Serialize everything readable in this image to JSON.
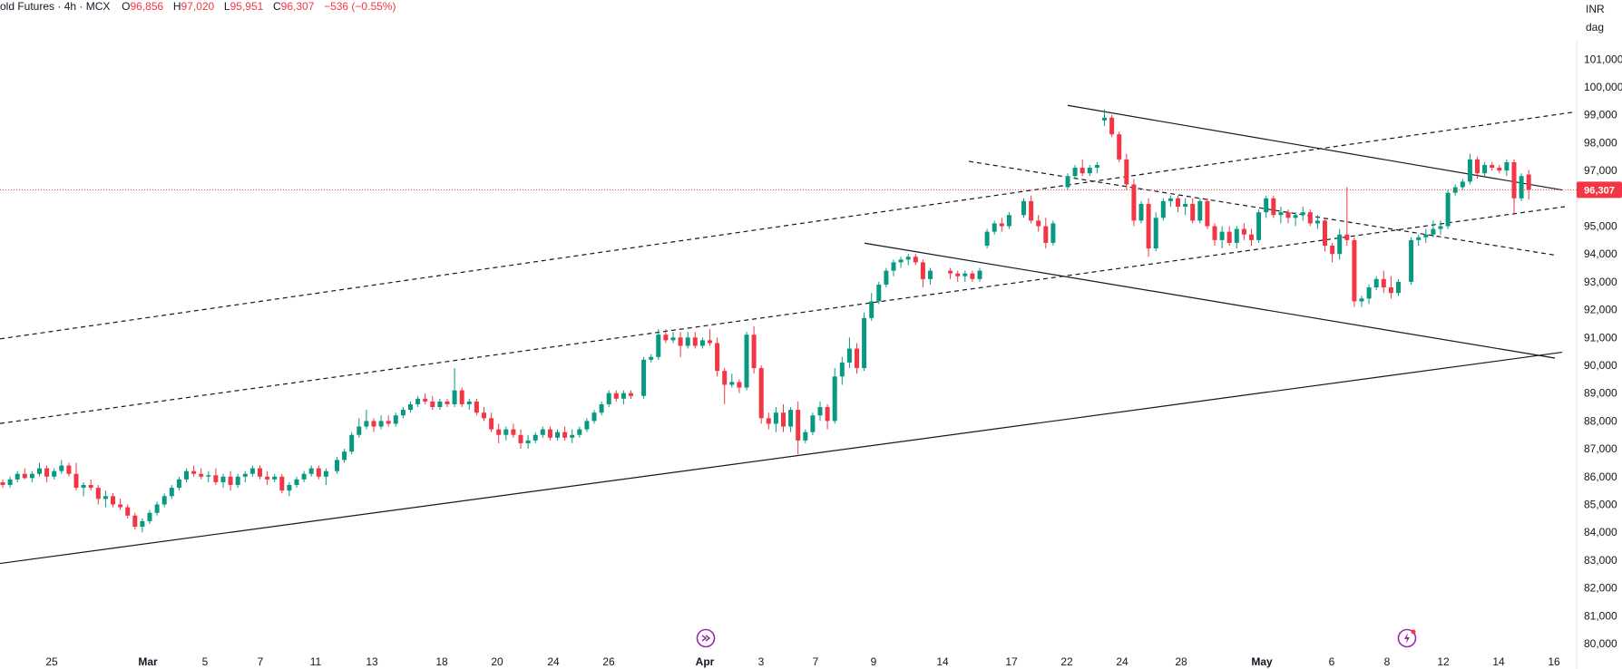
{
  "header": {
    "symbol": "old Futures",
    "interval": "4h",
    "exchange": "MCX",
    "o_label": "O",
    "o_value": "96,856",
    "h_label": "H",
    "h_value": "97,020",
    "l_label": "L",
    "l_value": "95,951",
    "c_label": "C",
    "c_value": "96,307",
    "change": "−536 (−0.55%)"
  },
  "price_axis": {
    "currency": "INR",
    "unit": "dag",
    "ticks": [
      "101,000",
      "100,000",
      "99,000",
      "98,000",
      "97,000",
      "96,000",
      "95,000",
      "94,000",
      "93,000",
      "92,000",
      "91,000",
      "90,000",
      "89,000",
      "88,000",
      "87,000",
      "86,000",
      "85,000",
      "84,000",
      "83,000",
      "82,000",
      "81,000",
      "80,000"
    ],
    "current_price": "96,307"
  },
  "colors": {
    "up": "#089981",
    "down": "#f23645",
    "trendline": "#131722",
    "price_line": "#f23645",
    "event_icon": "#9c27b0"
  },
  "chart_data": {
    "type": "candlestick",
    "y_unit": "INR",
    "yrange": [
      79600,
      102000
    ],
    "x_ticks": [
      "25",
      "Mar",
      "5",
      "7",
      "11",
      "13",
      "18",
      "20",
      "24",
      "26",
      "Apr",
      "3",
      "7",
      "9",
      "14",
      "17",
      "22",
      "24",
      "28",
      "May",
      "6",
      "8",
      "12",
      "14",
      "16"
    ],
    "last": {
      "open": 96856,
      "high": 97020,
      "low": 95951,
      "close": 96307,
      "change": -536,
      "change_pct": -0.55
    },
    "candles": [
      [
        85800,
        85900,
        85600,
        85700
      ],
      [
        85700,
        86000,
        85600,
        85900
      ],
      [
        85900,
        86200,
        85800,
        86100
      ],
      [
        86100,
        86300,
        85900,
        85950
      ],
      [
        85950,
        86200,
        85800,
        86100
      ],
      [
        86100,
        86500,
        86000,
        86300
      ],
      [
        86300,
        86400,
        85800,
        86000
      ],
      [
        86000,
        86300,
        85900,
        86200
      ],
      [
        86200,
        86600,
        86100,
        86400
      ],
      [
        86400,
        86500,
        86000,
        86100
      ],
      [
        86100,
        86500,
        85500,
        85600
      ],
      [
        85600,
        85800,
        85300,
        85700
      ],
      [
        85700,
        85900,
        85500,
        85600
      ],
      [
        85600,
        85700,
        85000,
        85200
      ],
      [
        85200,
        85500,
        84900,
        85300
      ],
      [
        85300,
        85400,
        84900,
        85000
      ],
      [
        85000,
        85200,
        84800,
        84900
      ],
      [
        84900,
        85000,
        84500,
        84600
      ],
      [
        84600,
        84700,
        84100,
        84200
      ],
      [
        84200,
        84500,
        84000,
        84400
      ],
      [
        84400,
        84800,
        84300,
        84700
      ],
      [
        84700,
        85100,
        84600,
        85000
      ],
      [
        85000,
        85400,
        84900,
        85300
      ],
      [
        85300,
        85700,
        85200,
        85600
      ],
      [
        85600,
        86000,
        85500,
        85900
      ],
      [
        85900,
        86300,
        85800,
        86200
      ],
      [
        86200,
        86400,
        86000,
        86100
      ],
      [
        86100,
        86300,
        85900,
        86000
      ],
      [
        86000,
        86200,
        85800,
        86050
      ],
      [
        86050,
        86300,
        85700,
        85800
      ],
      [
        85800,
        86100,
        85600,
        86000
      ],
      [
        86000,
        86200,
        85500,
        85700
      ],
      [
        85700,
        86100,
        85600,
        86000
      ],
      [
        86000,
        86200,
        85800,
        86100
      ],
      [
        86100,
        86400,
        86000,
        86300
      ],
      [
        86300,
        86400,
        85900,
        86000
      ],
      [
        86000,
        86200,
        85700,
        85900
      ],
      [
        85900,
        86100,
        85800,
        86000
      ],
      [
        86000,
        86100,
        85400,
        85500
      ],
      [
        85500,
        85800,
        85300,
        85700
      ],
      [
        85700,
        86000,
        85600,
        85900
      ],
      [
        85900,
        86200,
        85800,
        86100
      ],
      [
        86100,
        86400,
        86000,
        86300
      ],
      [
        86300,
        86400,
        85900,
        86000
      ],
      [
        86000,
        86300,
        85700,
        86200
      ],
      [
        86200,
        86700,
        86100,
        86600
      ],
      [
        86600,
        87000,
        86500,
        86900
      ],
      [
        86900,
        87600,
        86800,
        87500
      ],
      [
        87500,
        88100,
        87400,
        87800
      ],
      [
        87800,
        88400,
        87700,
        88000
      ],
      [
        88000,
        88100,
        87600,
        87800
      ],
      [
        87800,
        88200,
        87700,
        88000
      ],
      [
        88000,
        88200,
        87800,
        87900
      ],
      [
        87900,
        88300,
        87800,
        88200
      ],
      [
        88200,
        88500,
        88100,
        88400
      ],
      [
        88400,
        88700,
        88300,
        88600
      ],
      [
        88600,
        88900,
        88500,
        88800
      ],
      [
        88800,
        89000,
        88600,
        88700
      ],
      [
        88700,
        88900,
        88400,
        88500
      ],
      [
        88500,
        88800,
        88400,
        88700
      ],
      [
        88700,
        88800,
        88500,
        88600
      ],
      [
        88600,
        89900,
        88500,
        89100
      ],
      [
        89100,
        89200,
        88500,
        88600
      ],
      [
        88600,
        88800,
        88400,
        88700
      ],
      [
        88700,
        88800,
        88200,
        88300
      ],
      [
        88300,
        88500,
        88000,
        88100
      ],
      [
        88100,
        88300,
        87600,
        87700
      ],
      [
        87700,
        87900,
        87200,
        87500
      ],
      [
        87500,
        87800,
        87300,
        87700
      ],
      [
        87700,
        87900,
        87400,
        87500
      ],
      [
        87500,
        87700,
        87000,
        87200
      ],
      [
        87200,
        87500,
        87000,
        87300
      ],
      [
        87300,
        87600,
        87200,
        87500
      ],
      [
        87500,
        87800,
        87400,
        87700
      ],
      [
        87700,
        87800,
        87300,
        87400
      ],
      [
        87400,
        87700,
        87300,
        87600
      ],
      [
        87600,
        87800,
        87300,
        87400
      ],
      [
        87400,
        87700,
        87200,
        87500
      ],
      [
        87500,
        87800,
        87400,
        87700
      ],
      [
        87700,
        88100,
        87600,
        88000
      ],
      [
        88000,
        88400,
        87900,
        88300
      ],
      [
        88300,
        88700,
        88200,
        88600
      ],
      [
        88600,
        89100,
        88500,
        89000
      ],
      [
        89000,
        89100,
        88700,
        88800
      ],
      [
        88800,
        89100,
        88600,
        89000
      ],
      [
        89000,
        89100,
        88800,
        88900
      ],
      [
        88900,
        90300,
        88800,
        90200
      ],
      [
        90200,
        90400,
        90100,
        90300
      ],
      [
        90300,
        91300,
        90200,
        91100
      ],
      [
        91100,
        91300,
        90800,
        90900
      ],
      [
        90900,
        91200,
        90800,
        91000
      ],
      [
        91000,
        91200,
        90300,
        90700
      ],
      [
        90700,
        91200,
        90600,
        91000
      ],
      [
        91000,
        91200,
        90600,
        90700
      ],
      [
        90700,
        91000,
        90600,
        90900
      ],
      [
        90900,
        91300,
        90700,
        90800
      ],
      [
        90800,
        91000,
        89600,
        89800
      ],
      [
        89800,
        89900,
        88600,
        89300
      ],
      [
        89300,
        89700,
        89200,
        89400
      ],
      [
        89400,
        89500,
        89000,
        89200
      ],
      [
        89200,
        91200,
        89100,
        91100
      ],
      [
        91100,
        91400,
        89700,
        89900
      ],
      [
        89900,
        90000,
        87900,
        88100
      ],
      [
        88100,
        88300,
        87700,
        87900
      ],
      [
        87900,
        88500,
        87600,
        88300
      ],
      [
        88300,
        88600,
        87600,
        87800
      ],
      [
        87800,
        88500,
        87600,
        88400
      ],
      [
        88400,
        88700,
        86800,
        87300
      ],
      [
        87300,
        87700,
        87200,
        87600
      ],
      [
        87600,
        88300,
        87500,
        88200
      ],
      [
        88200,
        88700,
        88000,
        88500
      ],
      [
        88500,
        88600,
        87700,
        88000
      ],
      [
        88000,
        89900,
        87900,
        89600
      ],
      [
        89600,
        90300,
        89300,
        90100
      ],
      [
        90100,
        91000,
        89900,
        90600
      ],
      [
        90600,
        90800,
        89700,
        89900
      ],
      [
        89900,
        91900,
        89800,
        91700
      ],
      [
        91700,
        92600,
        91600,
        92300
      ],
      [
        92300,
        93000,
        92200,
        92900
      ],
      [
        92900,
        93500,
        92800,
        93400
      ],
      [
        93400,
        93800,
        93200,
        93700
      ],
      [
        93700,
        93900,
        93500,
        93800
      ],
      [
        93800,
        94000,
        93600,
        93900
      ],
      [
        93900,
        94000,
        93600,
        93700
      ],
      [
        93700,
        93800,
        92800,
        93100
      ],
      [
        93100,
        93500,
        92900,
        93400
      ],
      [
        93400,
        93500,
        93100,
        93300
      ],
      [
        93300,
        93400,
        93000,
        93200
      ],
      [
        93200,
        93400,
        93000,
        93300
      ],
      [
        93300,
        93400,
        93000,
        93100
      ],
      [
        93100,
        93500,
        93000,
        93400
      ],
      [
        94300,
        94900,
        94200,
        94800
      ],
      [
        94800,
        95200,
        94700,
        95100
      ],
      [
        95100,
        95300,
        94800,
        95000
      ],
      [
        95000,
        95500,
        94900,
        95400
      ],
      [
        95400,
        96000,
        95300,
        95900
      ],
      [
        95900,
        96100,
        95100,
        95200
      ],
      [
        95200,
        95400,
        94800,
        95000
      ],
      [
        95000,
        95300,
        94200,
        94400
      ],
      [
        94400,
        95200,
        94300,
        95100
      ],
      [
        96400,
        96900,
        96300,
        96800
      ],
      [
        96800,
        97200,
        96700,
        97100
      ],
      [
        97100,
        97400,
        96800,
        96900
      ],
      [
        96900,
        97200,
        96800,
        97100
      ],
      [
        97100,
        97300,
        96900,
        97200
      ],
      [
        98800,
        99200,
        98600,
        98900
      ],
      [
        98900,
        99000,
        98200,
        98300
      ],
      [
        98300,
        98400,
        97300,
        97400
      ],
      [
        97400,
        97600,
        96300,
        96500
      ],
      [
        96500,
        96700,
        95000,
        95200
      ],
      [
        95200,
        95900,
        95100,
        95800
      ],
      [
        95800,
        96000,
        93900,
        94200
      ],
      [
        94200,
        95500,
        94100,
        95300
      ],
      [
        95300,
        96000,
        95200,
        95900
      ],
      [
        95900,
        96100,
        95700,
        96000
      ],
      [
        96000,
        96100,
        95500,
        95700
      ],
      [
        95700,
        96000,
        95400,
        95800
      ],
      [
        95800,
        96000,
        95100,
        95200
      ],
      [
        95200,
        96000,
        95100,
        95900
      ],
      [
        95900,
        96000,
        94900,
        95000
      ],
      [
        95000,
        95100,
        94300,
        94500
      ],
      [
        94500,
        95000,
        94200,
        94800
      ],
      [
        94800,
        95000,
        94300,
        94400
      ],
      [
        94400,
        95000,
        94200,
        94900
      ],
      [
        94900,
        95100,
        94500,
        94700
      ],
      [
        94700,
        94900,
        94300,
        94500
      ],
      [
        94500,
        95600,
        94400,
        95500
      ],
      [
        95500,
        96100,
        95300,
        96000
      ],
      [
        96000,
        96100,
        95300,
        95400
      ],
      [
        95400,
        95700,
        95100,
        95500
      ],
      [
        95500,
        95600,
        95100,
        95300
      ],
      [
        95300,
        95500,
        95000,
        95400
      ],
      [
        95400,
        95700,
        95200,
        95500
      ],
      [
        95500,
        95600,
        95000,
        95100
      ],
      [
        95100,
        95400,
        94900,
        95200
      ],
      [
        95200,
        95300,
        94100,
        94300
      ],
      [
        94300,
        94400,
        93700,
        94000
      ],
      [
        94000,
        94900,
        93800,
        94700
      ],
      [
        94700,
        96400,
        94300,
        94500
      ],
      [
        94500,
        94600,
        92100,
        92300
      ],
      [
        92300,
        92500,
        92100,
        92400
      ],
      [
        92400,
        92900,
        92200,
        92800
      ],
      [
        92800,
        93200,
        92700,
        93100
      ],
      [
        93100,
        93400,
        92600,
        92800
      ],
      [
        92800,
        93200,
        92400,
        92600
      ],
      [
        92600,
        93100,
        92500,
        93000
      ],
      [
        93000,
        94600,
        92900,
        94500
      ],
      [
        94500,
        94700,
        94300,
        94600
      ],
      [
        94600,
        94900,
        94400,
        94700
      ],
      [
        94700,
        95200,
        94600,
        94900
      ],
      [
        94900,
        95200,
        94700,
        95000
      ],
      [
        95000,
        96300,
        94900,
        96200
      ],
      [
        96200,
        96500,
        96100,
        96400
      ],
      [
        96400,
        96700,
        96300,
        96600
      ],
      [
        96600,
        97600,
        96500,
        97400
      ],
      [
        97400,
        97500,
        96700,
        96900
      ],
      [
        96900,
        97300,
        96800,
        97200
      ],
      [
        97200,
        97300,
        97000,
        97100
      ],
      [
        97100,
        97200,
        96900,
        97000
      ],
      [
        97000,
        97400,
        96800,
        97300
      ],
      [
        97300,
        97400,
        95400,
        96000
      ],
      [
        96000,
        96900,
        95900,
        96800
      ],
      [
        96856,
        97020,
        95951,
        96307
      ]
    ],
    "trendlines": [
      {
        "style": "solid",
        "from": [
          0,
          82880
        ],
        "to": [
          1722,
          90470
        ]
      },
      {
        "style": "solid",
        "from": [
          953,
          94390
        ],
        "to": [
          1714,
          90260
        ]
      },
      {
        "style": "solid",
        "from": [
          1177,
          99340
        ],
        "to": [
          1722,
          96300
        ]
      },
      {
        "style": "dashed",
        "from": [
          0,
          90950
        ],
        "to": [
          1733,
          99090
        ]
      },
      {
        "style": "dashed",
        "from": [
          0,
          87910
        ],
        "to": [
          1725,
          95700
        ]
      },
      {
        "style": "dashed",
        "from": [
          1068,
          97330
        ],
        "to": [
          1714,
          93960
        ]
      }
    ]
  },
  "events": [
    {
      "name": "dividend-event",
      "icon": "arrow-circle-icon"
    },
    {
      "name": "earnings-event",
      "icon": "bolt-circle-icon"
    }
  ]
}
